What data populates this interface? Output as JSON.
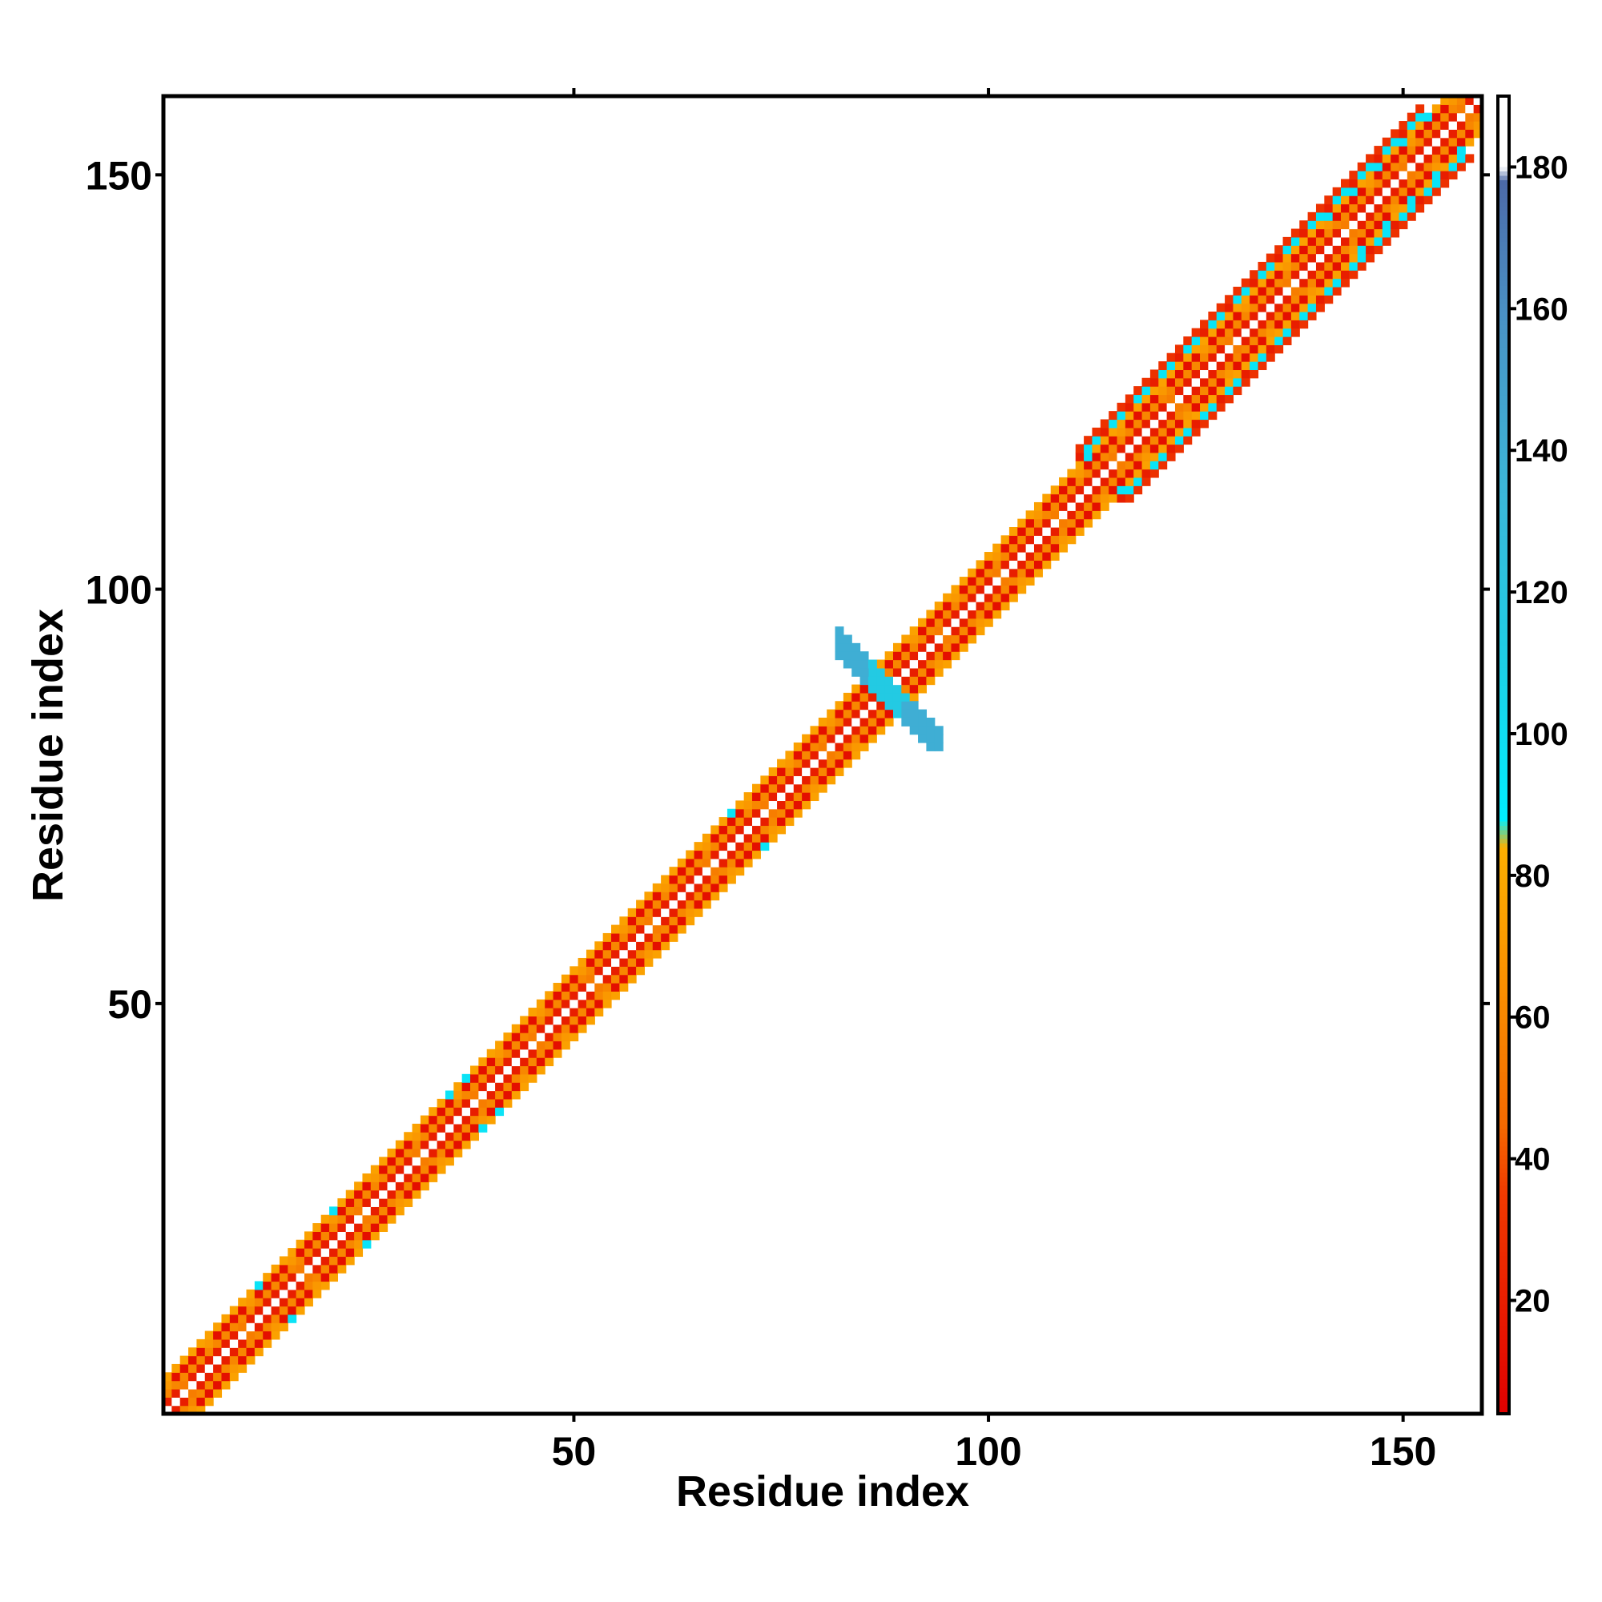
{
  "chart_data": {
    "type": "heatmap",
    "title": "",
    "xlabel": "Residue index",
    "ylabel": "Residue index",
    "xlim": [
      0.5,
      159.5
    ],
    "ylim": [
      0.5,
      159.5
    ],
    "x_ticks": [
      50,
      100,
      150
    ],
    "y_ticks": [
      50,
      100,
      150
    ],
    "grid": false,
    "colorbar": {
      "ticks": [
        20,
        40,
        60,
        80,
        100,
        120,
        140,
        160,
        180
      ],
      "range": [
        4,
        190
      ],
      "stops": [
        {
          "value": 4,
          "color": "#e00000"
        },
        {
          "value": 35,
          "color": "#f03a00"
        },
        {
          "value": 45,
          "color": "#f56a00"
        },
        {
          "value": 65,
          "color": "#f99000"
        },
        {
          "value": 84,
          "color": "#fdb000"
        },
        {
          "value": 88,
          "color": "#00eeff"
        },
        {
          "value": 110,
          "color": "#1dcfe6"
        },
        {
          "value": 135,
          "color": "#3cb6d8"
        },
        {
          "value": 160,
          "color": "#4a90c4"
        },
        {
          "value": 178,
          "color": "#4c6aa8"
        },
        {
          "value": 180,
          "color": "#ffffff"
        },
        {
          "value": 190,
          "color": "#ffffff"
        }
      ]
    },
    "description_of_cells": "Banded contact map: values near the diagonal for |i-j| from 1 to 4; larger offsets in the 111-152 region; a crossing patch around residue 88.",
    "band": {
      "n_residues": 159,
      "diagonal_value": 190,
      "offset_values": {
        "1": 20,
        "2": 60,
        "3": 12,
        "4": 75
      },
      "wide_region": {
        "start": 111,
        "end": 152,
        "extra_offsets": {
          "5": 95,
          "6": 30
        }
      },
      "cyan_sites": [
        12,
        21,
        35,
        37,
        69,
        112,
        141,
        144,
        147,
        150,
        153
      ],
      "cross": {
        "center": 87.5,
        "half_span": 6,
        "width": 1,
        "value": 140,
        "core_value": 115
      }
    }
  }
}
